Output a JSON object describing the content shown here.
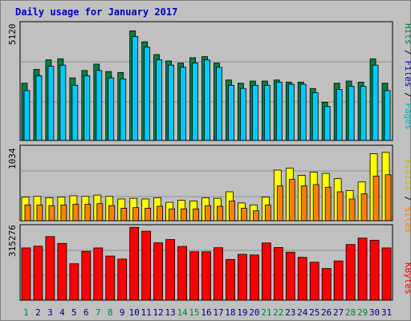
{
  "chart_data": [
    {
      "type": "bar",
      "title": "Daily usage for January 2017",
      "ylabel_parts": [
        "Pages",
        "Files",
        "Hits"
      ],
      "y_tick": "5120",
      "ylim": [
        0,
        5450
      ],
      "categories": [
        "1",
        "2",
        "3",
        "4",
        "5",
        "6",
        "7",
        "8",
        "9",
        "10",
        "11",
        "12",
        "13",
        "14",
        "15",
        "16",
        "17",
        "18",
        "19",
        "20",
        "21",
        "22",
        "23",
        "24",
        "25",
        "26",
        "27",
        "28",
        "29",
        "30",
        "31"
      ],
      "series": [
        {
          "name": "Hits",
          "values": [
            2700,
            3350,
            3800,
            3850,
            2950,
            3300,
            3600,
            3250,
            3200,
            5170,
            4650,
            4050,
            3750,
            3650,
            3900,
            3950,
            3650,
            2850,
            2700,
            2800,
            2800,
            2850,
            2750,
            2750,
            2450,
            1800,
            2700,
            2800,
            2750,
            3850,
            2700
          ]
        },
        {
          "name": "Files",
          "values": [
            2350,
            3050,
            3500,
            3550,
            2600,
            3050,
            3300,
            2950,
            2900,
            4900,
            4400,
            3800,
            3550,
            3450,
            3650,
            3800,
            3450,
            2600,
            2450,
            2600,
            2600,
            2750,
            2650,
            2650,
            2250,
            1600,
            2400,
            2550,
            2550,
            3550,
            2350
          ]
        },
        {
          "name": "Pages",
          "values": [
            0,
            0,
            0,
            0,
            0,
            0,
            0,
            0,
            0,
            0,
            0,
            0,
            0,
            0,
            0,
            0,
            0,
            0,
            0,
            0,
            0,
            0,
            0,
            0,
            0,
            0,
            0,
            0,
            0,
            0,
            0
          ]
        }
      ]
    },
    {
      "type": "bar",
      "ylabel_parts": [
        "Sites",
        "Visits"
      ],
      "y_tick": "1034",
      "ylim": [
        0,
        1100
      ],
      "categories": [
        "1",
        "2",
        "3",
        "4",
        "5",
        "6",
        "7",
        "8",
        "9",
        "10",
        "11",
        "12",
        "13",
        "14",
        "15",
        "16",
        "17",
        "18",
        "19",
        "20",
        "21",
        "22",
        "23",
        "24",
        "25",
        "26",
        "27",
        "28",
        "29",
        "30",
        "31"
      ],
      "series": [
        {
          "name": "Visits",
          "values": [
            360,
            370,
            350,
            360,
            380,
            370,
            390,
            370,
            330,
            340,
            330,
            350,
            280,
            310,
            300,
            350,
            340,
            440,
            270,
            240,
            360,
            770,
            800,
            690,
            740,
            720,
            640,
            460,
            590,
            1020,
            1040
          ]
        },
        {
          "name": "Sites",
          "values": [
            240,
            240,
            230,
            240,
            250,
            250,
            260,
            230,
            190,
            200,
            190,
            220,
            180,
            180,
            180,
            230,
            220,
            300,
            190,
            150,
            240,
            530,
            630,
            530,
            550,
            510,
            440,
            330,
            410,
            680,
            700
          ]
        }
      ]
    },
    {
      "type": "bar",
      "ylabel_parts": [
        "KBytes"
      ],
      "y_tick": "315276",
      "ylim": [
        0,
        345000
      ],
      "categories": [
        "1",
        "2",
        "3",
        "4",
        "5",
        "6",
        "7",
        "8",
        "9",
        "10",
        "11",
        "12",
        "13",
        "14",
        "15",
        "16",
        "17",
        "18",
        "19",
        "20",
        "21",
        "22",
        "23",
        "24",
        "25",
        "26",
        "27",
        "28",
        "29",
        "30",
        "31"
      ],
      "series": [
        {
          "name": "KBytes",
          "values": [
            244000,
            252000,
            297000,
            265000,
            170000,
            228000,
            244000,
            206000,
            192000,
            340000,
            322000,
            268000,
            283000,
            251000,
            226000,
            226000,
            245000,
            190000,
            214000,
            211000,
            267000,
            246000,
            224000,
            200000,
            177000,
            148000,
            183000,
            260000,
            290000,
            280000,
            244000
          ]
        }
      ]
    }
  ],
  "colors": {
    "hits": "#008040",
    "files": "#00c8f8",
    "pages": "#00e0e0",
    "visits": "#ffff00",
    "sites": "#ff8000",
    "kbytes": "#ff0000",
    "title": "#0000c0",
    "panel_bg": "#c0c0c0",
    "weekend_day": "#008040",
    "weekday_day": "#000080",
    "separator": "#000000"
  },
  "weekend_days": [
    "1",
    "7",
    "8",
    "14",
    "15",
    "21",
    "22",
    "28",
    "29"
  ]
}
